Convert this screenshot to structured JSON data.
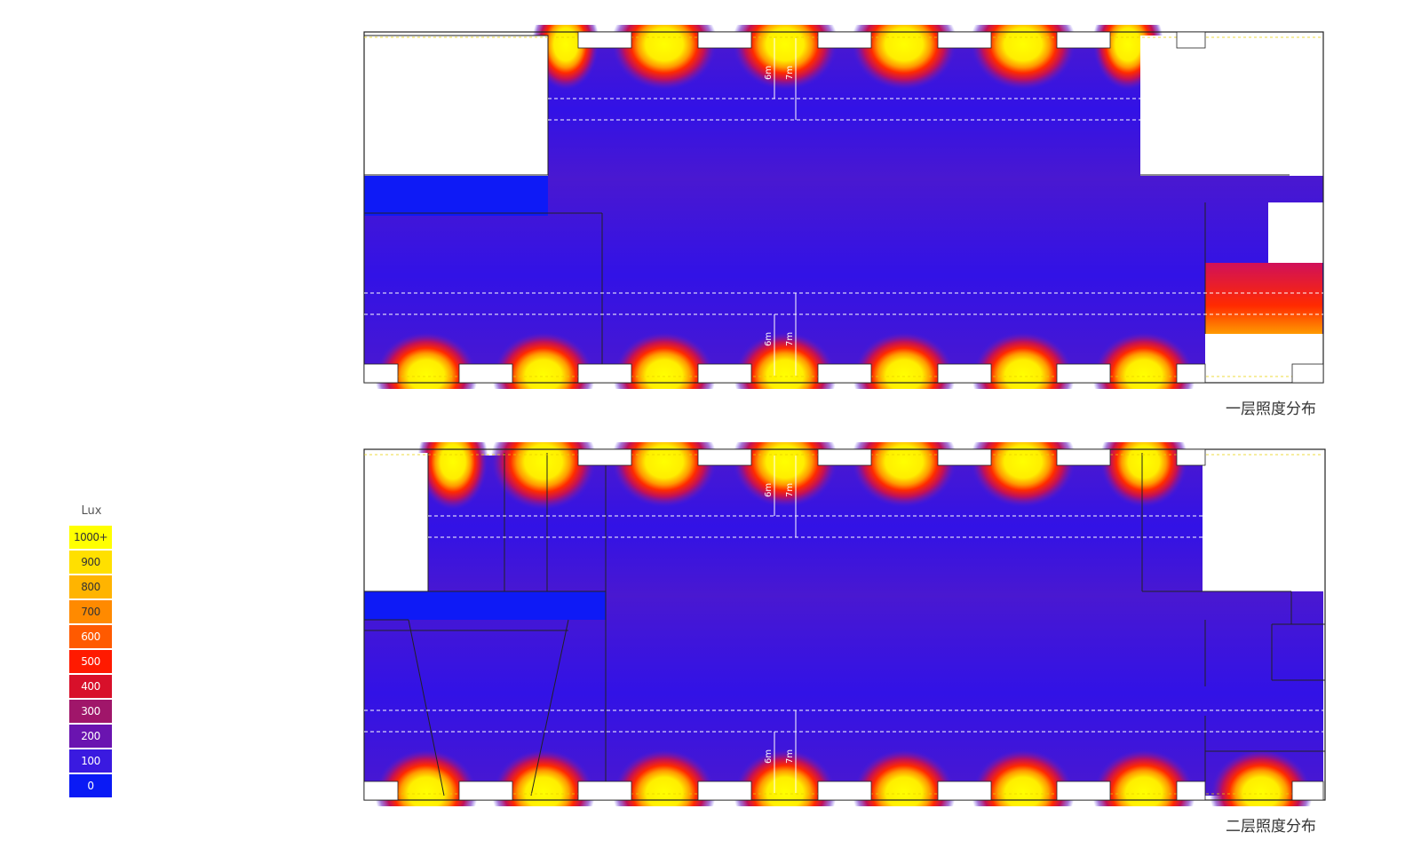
{
  "legend": {
    "title": "Lux",
    "items": [
      {
        "label": "1000+",
        "color": "#ffff00"
      },
      {
        "label": "900",
        "color": "#ffe000"
      },
      {
        "label": "800",
        "color": "#ffb400"
      },
      {
        "label": "700",
        "color": "#ff8a00"
      },
      {
        "label": "600",
        "color": "#ff5a00"
      },
      {
        "label": "500",
        "color": "#ff1a00"
      },
      {
        "label": "400",
        "color": "#d8102a"
      },
      {
        "label": "300",
        "color": "#a0166a"
      },
      {
        "label": "200",
        "color": "#6a14b0"
      },
      {
        "label": "100",
        "color": "#3a1ae0"
      },
      {
        "label": "0",
        "color": "#0a1af5"
      }
    ]
  },
  "floor1": {
    "caption": "一层照度分布",
    "dim_6m": "6m",
    "dim_7m": "7m"
  },
  "floor2": {
    "caption": "二层照度分布",
    "dim_6m": "6m",
    "dim_7m": "7m"
  }
}
